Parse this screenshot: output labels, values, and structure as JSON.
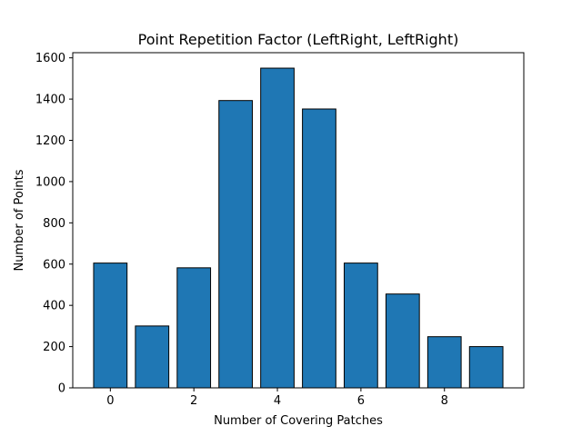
{
  "chart_data": {
    "type": "bar",
    "title": "Point Repetition Factor (LeftRight, LeftRight)",
    "xlabel": "Number of Covering Patches",
    "ylabel": "Number of Points",
    "x": [
      0,
      1,
      2,
      3,
      4,
      5,
      6,
      7,
      8,
      9
    ],
    "values": [
      605,
      300,
      582,
      1393,
      1550,
      1352,
      605,
      455,
      248,
      200
    ],
    "xlim": [
      -0.9,
      9.9
    ],
    "ylim": [
      0,
      1625
    ],
    "xticks": [
      0,
      2,
      4,
      6,
      8
    ],
    "yticks": [
      0,
      200,
      400,
      600,
      800,
      1000,
      1200,
      1400,
      1600
    ],
    "grid": false,
    "colors": {
      "bar_fill": "#1f77b4",
      "bar_edge": "#000000"
    }
  }
}
